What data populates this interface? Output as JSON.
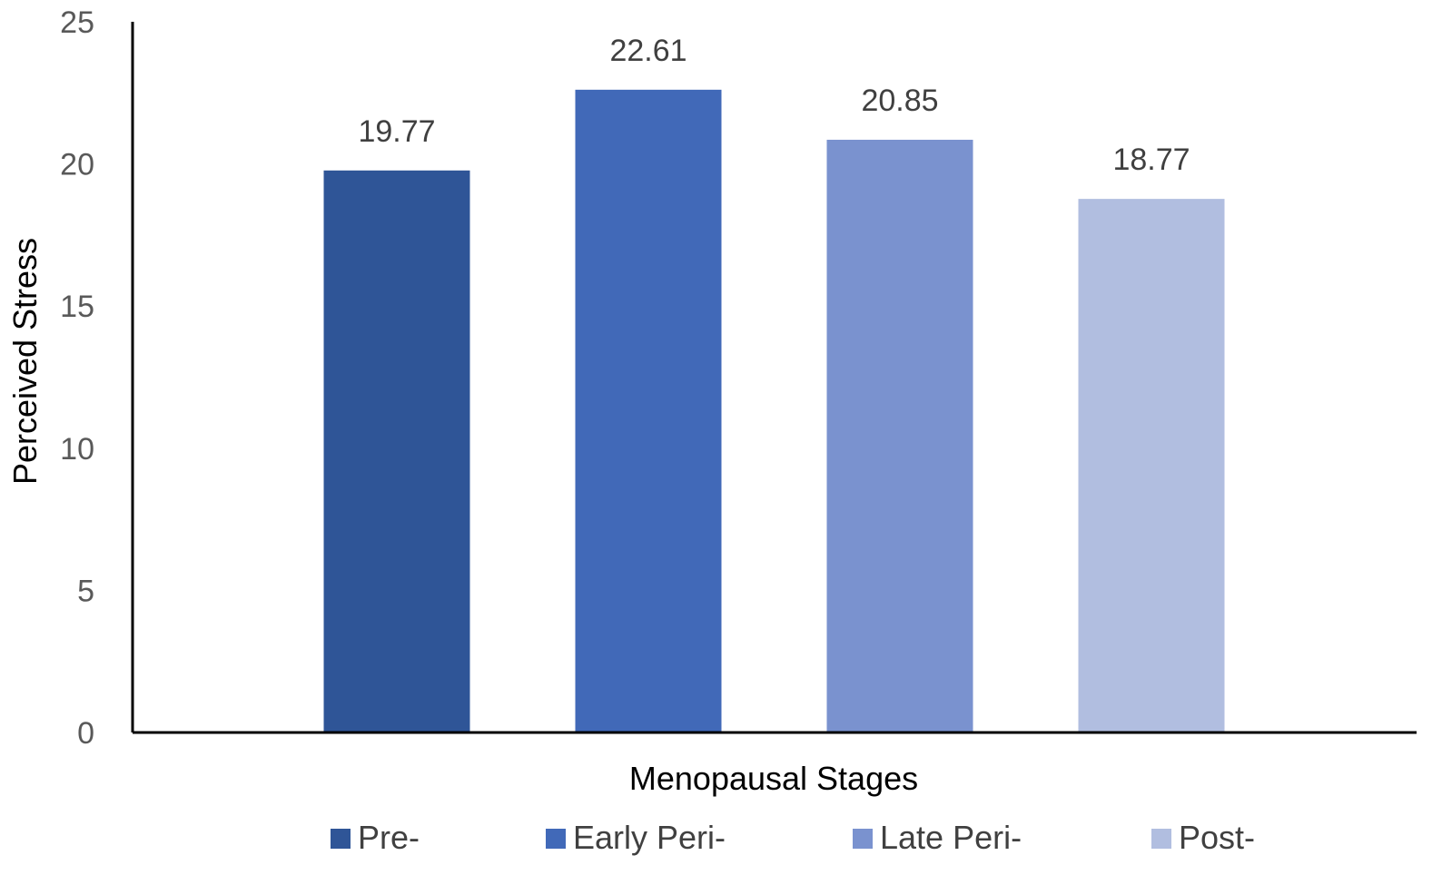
{
  "chart_data": {
    "type": "bar",
    "title": "",
    "xlabel": "Menopausal Stages",
    "ylabel": "Perceived Stress",
    "ylim": [
      0,
      25
    ],
    "yticks": [
      0,
      5,
      10,
      15,
      20,
      25
    ],
    "grid": false,
    "legend_position": "bottom",
    "series": [
      {
        "name": "Pre-",
        "value": 19.77,
        "label": "19.77",
        "color": "#2F5597"
      },
      {
        "name": "Early Peri-",
        "value": 22.61,
        "label": "22.61",
        "color": "#4169B8"
      },
      {
        "name": "Late Peri-",
        "value": 20.85,
        "label": "20.85",
        "color": "#7A92CF"
      },
      {
        "name": "Post-",
        "value": 18.77,
        "label": "18.77",
        "color": "#B1BEE0"
      }
    ]
  }
}
